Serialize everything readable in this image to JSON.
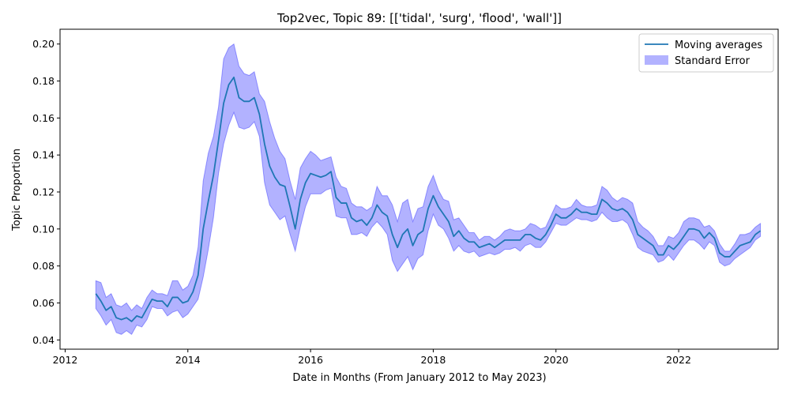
{
  "chart_data": {
    "type": "line",
    "title": "Top2vec, Topic 89: [['tidal', 'surg', 'flood', 'wall']]",
    "xlabel": "Date in Months (From January 2012 to May 2023)",
    "ylabel": "Topic Proportion",
    "xlim": [
      "2011-12-01",
      "2023-08-15"
    ],
    "ylim": [
      0.035,
      0.208
    ],
    "x_ticks": [
      "2012",
      "2014",
      "2016",
      "2018",
      "2020",
      "2022"
    ],
    "y_ticks": [
      "0.04",
      "0.06",
      "0.08",
      "0.10",
      "0.12",
      "0.14",
      "0.16",
      "0.18",
      "0.20"
    ],
    "grid": false,
    "legend_position": "top-right",
    "colors": {
      "line": "#1f77b4",
      "band": "#0000ff",
      "band_opacity": 0.3
    },
    "series": [
      {
        "name": "Moving averages",
        "x": [
          "2012-07",
          "2012-08",
          "2012-09",
          "2012-10",
          "2012-11",
          "2012-12",
          "2013-01",
          "2013-02",
          "2013-03",
          "2013-04",
          "2013-05",
          "2013-06",
          "2013-07",
          "2013-08",
          "2013-09",
          "2013-10",
          "2013-11",
          "2013-12",
          "2014-01",
          "2014-02",
          "2014-03",
          "2014-04",
          "2014-05",
          "2014-06",
          "2014-07",
          "2014-08",
          "2014-09",
          "2014-10",
          "2014-11",
          "2014-12",
          "2015-01",
          "2015-02",
          "2015-03",
          "2015-04",
          "2015-05",
          "2015-06",
          "2015-07",
          "2015-08",
          "2015-09",
          "2015-10",
          "2015-11",
          "2015-12",
          "2016-01",
          "2016-02",
          "2016-03",
          "2016-04",
          "2016-05",
          "2016-06",
          "2016-07",
          "2016-08",
          "2016-09",
          "2016-10",
          "2016-11",
          "2016-12",
          "2017-01",
          "2017-02",
          "2017-03",
          "2017-04",
          "2017-05",
          "2017-06",
          "2017-07",
          "2017-08",
          "2017-09",
          "2017-10",
          "2017-11",
          "2017-12",
          "2018-01",
          "2018-02",
          "2018-03",
          "2018-04",
          "2018-05",
          "2018-06",
          "2018-07",
          "2018-08",
          "2018-09",
          "2018-10",
          "2018-11",
          "2018-12",
          "2019-01",
          "2019-02",
          "2019-03",
          "2019-04",
          "2019-05",
          "2019-06",
          "2019-07",
          "2019-08",
          "2019-09",
          "2019-10",
          "2019-11",
          "2019-12",
          "2020-01",
          "2020-02",
          "2020-03",
          "2020-04",
          "2020-05",
          "2020-06",
          "2020-07",
          "2020-08",
          "2020-09",
          "2020-10",
          "2020-11",
          "2020-12",
          "2021-01",
          "2021-02",
          "2021-03",
          "2021-04",
          "2021-05",
          "2021-06",
          "2021-07",
          "2021-08",
          "2021-09",
          "2021-10",
          "2021-11",
          "2021-12",
          "2022-01",
          "2022-02",
          "2022-03",
          "2022-04",
          "2022-05",
          "2022-06",
          "2022-07",
          "2022-08",
          "2022-09",
          "2022-10",
          "2022-11",
          "2022-12",
          "2023-01",
          "2023-02",
          "2023-03",
          "2023-04",
          "2023-05"
        ],
        "y": [
          0.065,
          0.061,
          0.056,
          0.058,
          0.052,
          0.051,
          0.052,
          0.05,
          0.053,
          0.052,
          0.057,
          0.062,
          0.061,
          0.061,
          0.058,
          0.063,
          0.063,
          0.06,
          0.061,
          0.066,
          0.075,
          0.1,
          0.115,
          0.129,
          0.148,
          0.168,
          0.178,
          0.182,
          0.171,
          0.169,
          0.169,
          0.171,
          0.162,
          0.146,
          0.134,
          0.128,
          0.124,
          0.123,
          0.112,
          0.1,
          0.116,
          0.125,
          0.13,
          0.129,
          0.128,
          0.129,
          0.131,
          0.117,
          0.114,
          0.114,
          0.106,
          0.104,
          0.105,
          0.102,
          0.106,
          0.113,
          0.109,
          0.107,
          0.097,
          0.09,
          0.097,
          0.1,
          0.091,
          0.097,
          0.099,
          0.111,
          0.118,
          0.112,
          0.108,
          0.104,
          0.096,
          0.099,
          0.095,
          0.093,
          0.093,
          0.09,
          0.091,
          0.092,
          0.09,
          0.092,
          0.094,
          0.094,
          0.094,
          0.094,
          0.097,
          0.097,
          0.095,
          0.094,
          0.097,
          0.102,
          0.108,
          0.106,
          0.106,
          0.108,
          0.111,
          0.109,
          0.109,
          0.108,
          0.108,
          0.116,
          0.114,
          0.111,
          0.11,
          0.111,
          0.109,
          0.105,
          0.097,
          0.095,
          0.093,
          0.091,
          0.086,
          0.086,
          0.091,
          0.089,
          0.092,
          0.096,
          0.1,
          0.1,
          0.099,
          0.095,
          0.098,
          0.095,
          0.087,
          0.085,
          0.085,
          0.088,
          0.091,
          0.092,
          0.093,
          0.097,
          0.099
        ]
      },
      {
        "name": "Standard Error",
        "upper": [
          0.072,
          0.071,
          0.063,
          0.065,
          0.059,
          0.058,
          0.06,
          0.056,
          0.059,
          0.057,
          0.063,
          0.067,
          0.065,
          0.065,
          0.064,
          0.072,
          0.072,
          0.067,
          0.069,
          0.075,
          0.09,
          0.126,
          0.141,
          0.15,
          0.166,
          0.192,
          0.198,
          0.2,
          0.188,
          0.184,
          0.183,
          0.185,
          0.173,
          0.169,
          0.158,
          0.149,
          0.142,
          0.138,
          0.126,
          0.116,
          0.133,
          0.138,
          0.142,
          0.14,
          0.137,
          0.138,
          0.139,
          0.128,
          0.123,
          0.122,
          0.114,
          0.112,
          0.112,
          0.11,
          0.112,
          0.123,
          0.118,
          0.118,
          0.113,
          0.104,
          0.114,
          0.116,
          0.104,
          0.111,
          0.112,
          0.123,
          0.129,
          0.121,
          0.116,
          0.115,
          0.105,
          0.106,
          0.102,
          0.098,
          0.098,
          0.094,
          0.096,
          0.096,
          0.094,
          0.096,
          0.099,
          0.1,
          0.099,
          0.099,
          0.1,
          0.103,
          0.102,
          0.1,
          0.101,
          0.107,
          0.113,
          0.111,
          0.111,
          0.112,
          0.116,
          0.113,
          0.112,
          0.112,
          0.113,
          0.123,
          0.121,
          0.117,
          0.115,
          0.117,
          0.116,
          0.114,
          0.104,
          0.101,
          0.099,
          0.096,
          0.091,
          0.091,
          0.096,
          0.095,
          0.098,
          0.104,
          0.106,
          0.106,
          0.105,
          0.101,
          0.102,
          0.099,
          0.092,
          0.088,
          0.088,
          0.092,
          0.097,
          0.097,
          0.098,
          0.101,
          0.103
        ],
        "lower": [
          0.057,
          0.053,
          0.048,
          0.051,
          0.044,
          0.043,
          0.045,
          0.043,
          0.048,
          0.047,
          0.051,
          0.058,
          0.057,
          0.057,
          0.053,
          0.055,
          0.056,
          0.052,
          0.054,
          0.058,
          0.062,
          0.074,
          0.089,
          0.106,
          0.13,
          0.146,
          0.156,
          0.163,
          0.155,
          0.154,
          0.155,
          0.158,
          0.15,
          0.125,
          0.113,
          0.109,
          0.105,
          0.107,
          0.097,
          0.088,
          0.101,
          0.112,
          0.119,
          0.119,
          0.119,
          0.121,
          0.122,
          0.107,
          0.106,
          0.106,
          0.097,
          0.097,
          0.098,
          0.096,
          0.101,
          0.104,
          0.101,
          0.097,
          0.083,
          0.077,
          0.081,
          0.085,
          0.078,
          0.084,
          0.086,
          0.099,
          0.108,
          0.102,
          0.1,
          0.095,
          0.088,
          0.091,
          0.088,
          0.087,
          0.088,
          0.085,
          0.086,
          0.087,
          0.086,
          0.087,
          0.089,
          0.089,
          0.09,
          0.088,
          0.091,
          0.092,
          0.09,
          0.09,
          0.093,
          0.098,
          0.103,
          0.102,
          0.102,
          0.104,
          0.106,
          0.105,
          0.105,
          0.104,
          0.105,
          0.109,
          0.106,
          0.104,
          0.104,
          0.105,
          0.103,
          0.097,
          0.09,
          0.088,
          0.087,
          0.086,
          0.082,
          0.083,
          0.086,
          0.083,
          0.087,
          0.091,
          0.094,
          0.094,
          0.092,
          0.089,
          0.093,
          0.091,
          0.082,
          0.08,
          0.081,
          0.084,
          0.086,
          0.088,
          0.09,
          0.094,
          0.096
        ]
      }
    ]
  }
}
